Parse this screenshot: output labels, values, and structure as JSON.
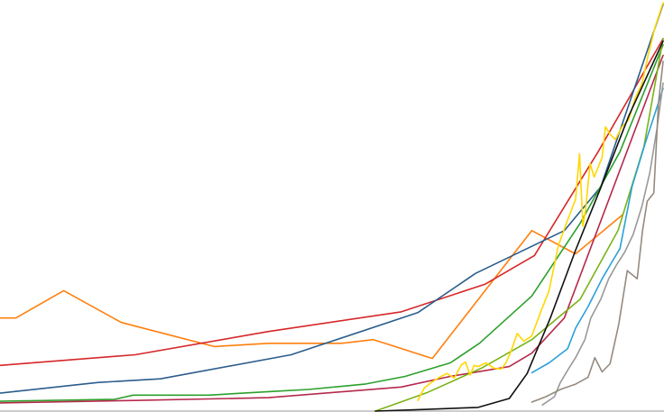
{
  "chart_data": {
    "type": "line",
    "title": "",
    "xlabel": "",
    "ylabel": "",
    "grid": false,
    "legend": "none",
    "xlim": [
      0,
      100
    ],
    "ylim": [
      0,
      100
    ],
    "series": [
      {
        "color": "#ff7f0e",
        "x": [
          0,
          2.4,
          9.6,
          18.3,
          32.3,
          40.5,
          51.5,
          56.3,
          65.2,
          80.2,
          86.8,
          93.9
        ],
        "y": [
          22.8,
          22.8,
          29.5,
          21.7,
          15.8,
          16.6,
          16.6,
          17.5,
          12.9,
          44.2,
          38.5,
          48.1
        ]
      },
      {
        "color": "#d62728",
        "x": [
          0,
          20.4,
          40.5,
          60.5,
          73.2,
          80.6,
          90.2,
          100
        ],
        "y": [
          11.2,
          13.8,
          19.5,
          24.3,
          31.1,
          38.1,
          63.5,
          91.2
        ]
      },
      {
        "color": "#2b5d8c",
        "x": [
          0,
          14.7,
          24.2,
          43.9,
          63.0,
          71.7,
          85.1,
          90.6,
          100
        ],
        "y": [
          4.4,
          7.0,
          7.9,
          13.8,
          24.1,
          33.7,
          44.2,
          54.9,
          99.6
        ]
      },
      {
        "color": "#2ca02c",
        "x": [
          0,
          17.3,
          20.1,
          31.5,
          40.8,
          46.5,
          55.0,
          61.1,
          67.9,
          72.3,
          80.2,
          87.5,
          93.5,
          100
        ],
        "y": [
          2.4,
          2.9,
          3.9,
          3.9,
          4.8,
          5.3,
          6.6,
          8.5,
          11.8,
          16.6,
          28.2,
          46.0,
          63.5,
          89.7
        ]
      },
      {
        "color": "#b5294c",
        "x": [
          0,
          20.4,
          40.5,
          60.5,
          67.9,
          76.8,
          80.2,
          85.1,
          100
        ],
        "y": [
          2.0,
          2.6,
          3.3,
          5.9,
          8.5,
          10.9,
          14.2,
          22.8,
          87.1
        ]
      },
      {
        "color": "#7ab317",
        "x": [
          56.6,
          64.5,
          72.6,
          80.2,
          87.5,
          93.2,
          97.1,
          100
        ],
        "y": [
          0,
          4.6,
          10.5,
          17.5,
          27.4,
          44.2,
          64.7,
          91.2
        ]
      },
      {
        "color": "#ffd700",
        "x": [
          63.0,
          64.0,
          65.2,
          66.3,
          67.4,
          68.5,
          69.6,
          70.2,
          70.9,
          71.5,
          72.1,
          73.3,
          74.5,
          75.6,
          76.3,
          77.0,
          78.0,
          79.0,
          80.2,
          81.5,
          82.8,
          84.2,
          85.3,
          86.8,
          87.4,
          87.9,
          88.3,
          89.0,
          89.6,
          90.8,
          91.3,
          92.0,
          92.8,
          93.8,
          94.8,
          95.8,
          96.8,
          97.8,
          98.8,
          100
        ],
        "y": [
          2.6,
          5.7,
          7.2,
          8.3,
          9.2,
          8.1,
          11.4,
          12.0,
          8.8,
          11.2,
          10.9,
          11.8,
          10.5,
          10.3,
          11.8,
          14.4,
          19.0,
          17.1,
          18.4,
          24.1,
          29.5,
          40.5,
          45.5,
          51.9,
          63.0,
          45.3,
          49.2,
          60.6,
          57.3,
          62.1,
          69.6,
          67.8,
          66.5,
          69.6,
          71.3,
          76.6,
          80.1,
          87.5,
          94.1,
          100
        ]
      },
      {
        "color": "#111111",
        "x": [
          56.6,
          63.9,
          72.1,
          76.8,
          79.5,
          83.0,
          86.8,
          90.6,
          94.8,
          100
        ],
        "y": [
          0,
          0.4,
          0.9,
          3.1,
          9.2,
          22.8,
          39.4,
          54.7,
          72.2,
          90.6
        ]
      },
      {
        "color": "#2aa0d8",
        "x": [
          80.2,
          82.8,
          85.6,
          86.8,
          88.7,
          90.8,
          92.2,
          93.5,
          95.3,
          97.3,
          100
        ],
        "y": [
          9.4,
          11.8,
          15.3,
          20.3,
          25.6,
          32.4,
          36.3,
          39.8,
          54.9,
          65.6,
          79.0
        ]
      },
      {
        "color": "#999999",
        "x": [
          81.8,
          83.6,
          84.5,
          85.8,
          86.8,
          88.2,
          89.1,
          90.6,
          91.8,
          93.0,
          94.2,
          95.5,
          96.8,
          98.0,
          99.1,
          100
        ],
        "y": [
          1.5,
          3.5,
          7.0,
          10.5,
          13.1,
          17.5,
          22.8,
          27.4,
          32.4,
          35.9,
          38.9,
          43.3,
          50.1,
          58.4,
          69.4,
          80.3
        ]
      },
      {
        "color": "#948a80",
        "x": [
          80.2,
          82.3,
          84.5,
          86.8,
          88.7,
          89.7,
          90.8,
          92.0,
          93.3,
          94.6,
          96.1,
          96.9,
          97.6,
          98.6,
          99.3,
          100
        ],
        "y": [
          2.2,
          3.5,
          5.3,
          6.6,
          8.3,
          13.1,
          9.6,
          11.6,
          21.2,
          34.4,
          32.4,
          44.2,
          51.4,
          53.4,
          75.5,
          85.6
        ]
      }
    ]
  }
}
